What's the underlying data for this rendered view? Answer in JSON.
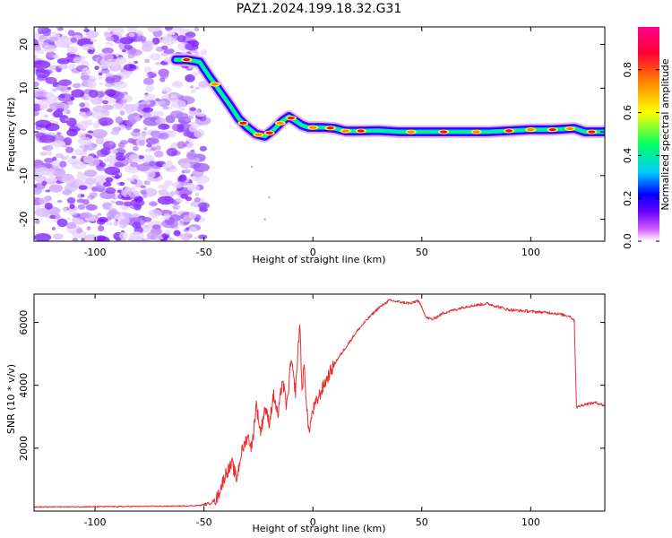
{
  "title": "PAZ1.2024.199.18.32.G31",
  "chart_data": [
    {
      "type": "heatmap",
      "xlabel": "Height of straight line (km)",
      "ylabel": "Frequency (Hz)",
      "xlim": [
        -128,
        134
      ],
      "ylim": [
        -25,
        24
      ],
      "xticks": [
        -100,
        -50,
        0,
        50,
        100
      ],
      "yticks": [
        -20,
        -10,
        0,
        10,
        20
      ],
      "colorbar": {
        "label": "Normalized spectral amplitude",
        "range": [
          0,
          1
        ],
        "ticks": [
          "0.0",
          "0.2",
          "0.4",
          "0.6",
          "0.8"
        ],
        "colors": [
          "#ffffff",
          "#cc55ff",
          "#6600ff",
          "#0000ff",
          "#00ccff",
          "#00ff66",
          "#ffff00",
          "#ff8800",
          "#ff0033",
          "#ff0088"
        ]
      },
      "noise_region_x": [
        -128,
        -50
      ],
      "ridge": {
        "x": [
          -63,
          -58,
          -52,
          -48,
          -43,
          -38,
          -34,
          -30,
          -26,
          -22,
          -18,
          -14,
          -11,
          -8,
          -5,
          -2,
          0,
          5,
          10,
          15,
          20,
          30,
          40,
          60,
          80,
          100,
          110,
          120,
          125,
          134
        ],
        "y": [
          16.5,
          16.5,
          16.0,
          13.0,
          9.5,
          6.0,
          3.0,
          1.0,
          -0.5,
          -1.0,
          0.5,
          2.5,
          3.5,
          2.5,
          1.5,
          1.0,
          1.0,
          1.0,
          0.8,
          0.2,
          0.2,
          0.3,
          0.0,
          0.0,
          0.0,
          0.5,
          0.5,
          0.8,
          0.0,
          0.0
        ]
      },
      "hot_spots_x": [
        -58,
        -45,
        -32,
        -25,
        -20,
        -15,
        -10,
        0,
        8,
        15,
        22,
        45,
        60,
        75,
        90,
        100,
        110,
        118,
        128
      ]
    },
    {
      "type": "line",
      "xlabel": "Height of straight line (km)",
      "ylabel": "SNR (10 * v/v)",
      "xlim": [
        -128,
        134
      ],
      "ylim": [
        0,
        6900
      ],
      "xticks": [
        -100,
        -50,
        0,
        50,
        100
      ],
      "yticks": [
        2000,
        4000,
        6000
      ],
      "color": "#e83030",
      "x": [
        -128,
        -100,
        -80,
        -60,
        -52,
        -47,
        -44,
        -42,
        -40,
        -37,
        -35,
        -33,
        -30,
        -28,
        -26,
        -24,
        -22,
        -20,
        -18,
        -16,
        -14,
        -12,
        -10,
        -8,
        -6,
        -5,
        -4,
        -2,
        0,
        5,
        10,
        15,
        20,
        25,
        30,
        35,
        40,
        45,
        48,
        50,
        52,
        55,
        60,
        70,
        80,
        90,
        100,
        110,
        118,
        120,
        121,
        125,
        130,
        134
      ],
      "y": [
        130,
        140,
        150,
        160,
        180,
        250,
        420,
        800,
        1200,
        1500,
        1000,
        1800,
        2400,
        2000,
        3400,
        2500,
        3300,
        2800,
        3700,
        3000,
        4200,
        3300,
        4800,
        3800,
        6000,
        3800,
        4600,
        2500,
        3200,
        4000,
        4700,
        5200,
        5700,
        6100,
        6450,
        6700,
        6650,
        6600,
        6700,
        6500,
        6150,
        6100,
        6300,
        6500,
        6600,
        6400,
        6350,
        6300,
        6200,
        6050,
        3300,
        3400,
        3450,
        3350
      ]
    }
  ]
}
